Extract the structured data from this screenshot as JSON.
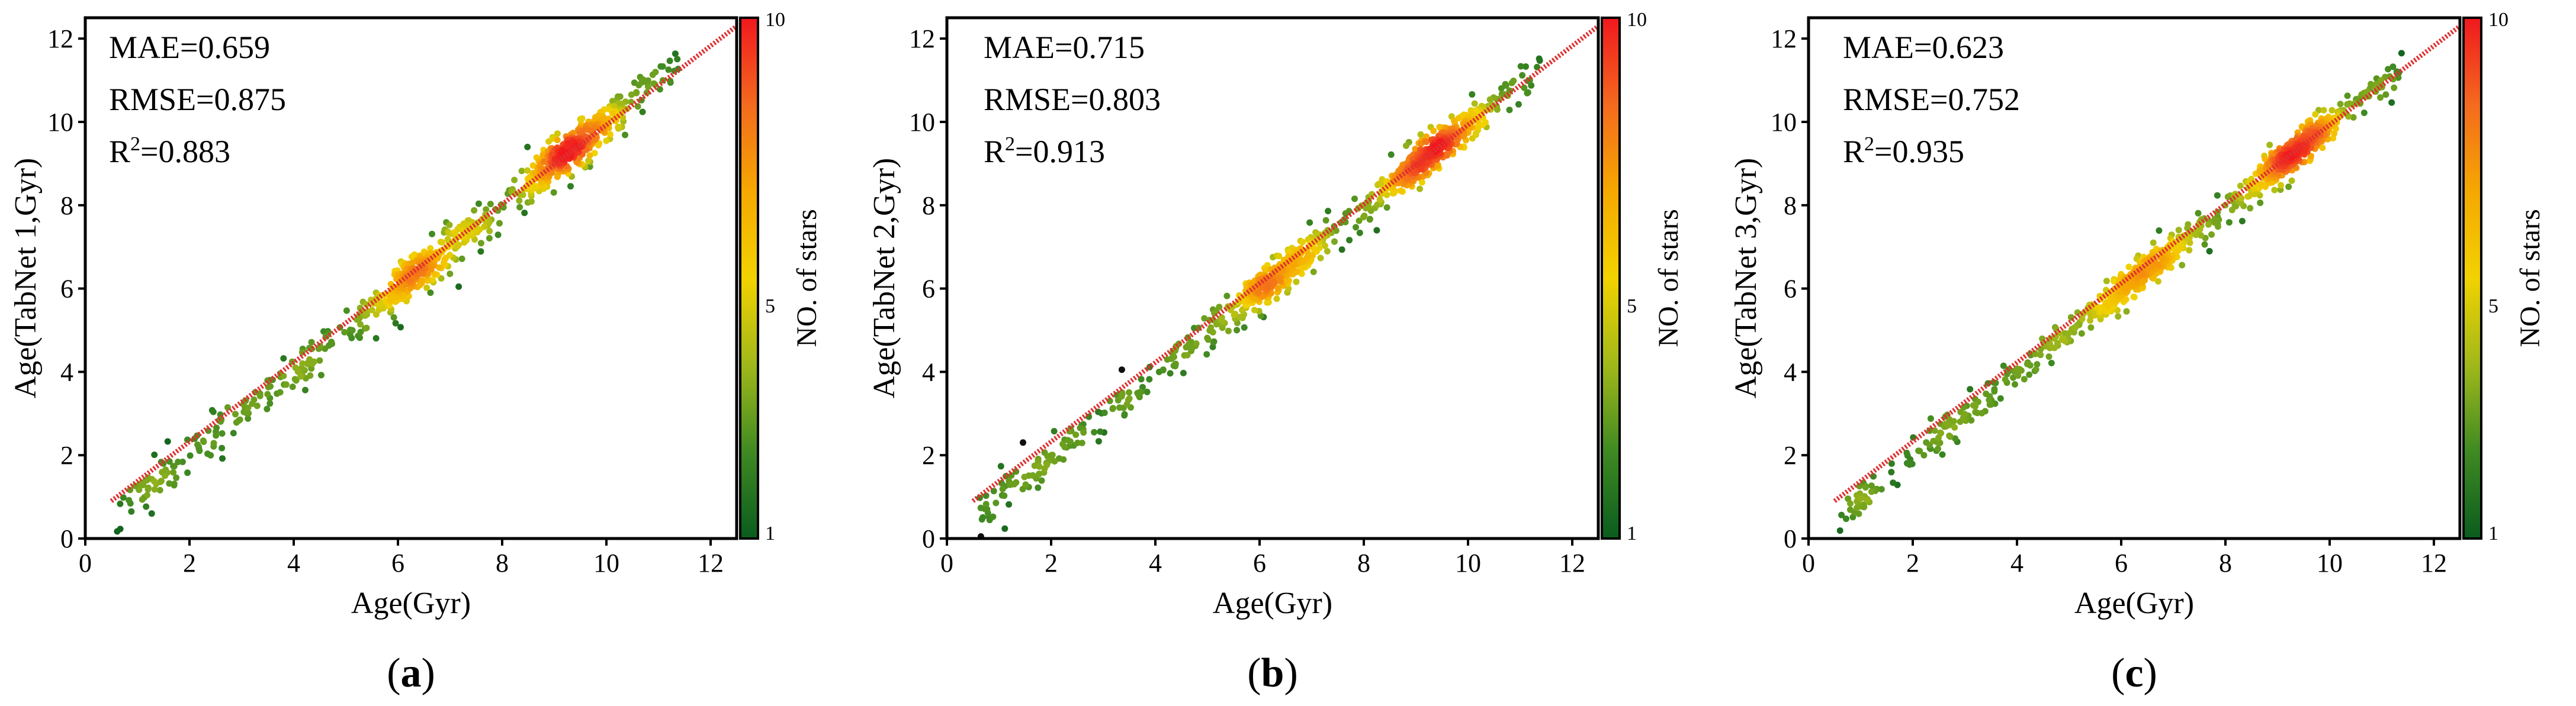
{
  "colorbar": {
    "label": "NO. of stars",
    "min": 1,
    "max": 10,
    "mid": 5,
    "ticks": [
      "1",
      "5",
      "10"
    ],
    "stops": [
      "#0a5c1e",
      "#3f8a22",
      "#a0b81a",
      "#f2d200",
      "#f5a800",
      "#f46a1e",
      "#f0181e"
    ]
  },
  "diagonal_color": "#e03030",
  "chart_data": [
    {
      "type": "scatter",
      "panel_label": "a",
      "xlabel": "Age(Gyr)",
      "ylabel": "Age(TabNet 1,Gyr)",
      "xlim": [
        0,
        12.5
      ],
      "ylim": [
        0,
        12.5
      ],
      "xticks": [
        0,
        2,
        4,
        6,
        8,
        10,
        12
      ],
      "yticks": [
        0,
        2,
        4,
        6,
        8,
        10,
        12
      ],
      "metrics": {
        "mae": "MAE=0.659",
        "rmse": "RMSE=0.875",
        "r2_prefix": "R",
        "r2_sup": "2",
        "r2_value": "=0.883"
      },
      "diagonal": [
        [
          0.5,
          0.9
        ],
        [
          12.5,
          12.3
        ]
      ],
      "n_points": 900,
      "noise_sd": 0.85,
      "seed": 11,
      "bias": 0.0
    },
    {
      "type": "scatter",
      "panel_label": "b",
      "xlabel": "Age(Gyr)",
      "ylabel": "Age(TabNet 2,Gyr)",
      "xlim": [
        0,
        12.5
      ],
      "ylim": [
        0,
        12.5
      ],
      "xticks": [
        0,
        2,
        4,
        6,
        8,
        10,
        12
      ],
      "yticks": [
        0,
        2,
        4,
        6,
        8,
        10,
        12
      ],
      "metrics": {
        "mae": "MAE=0.715",
        "rmse": "RMSE=0.803",
        "r2_prefix": "R",
        "r2_sup": "2",
        "r2_value": "=0.913"
      },
      "diagonal": [
        [
          0.5,
          0.9
        ],
        [
          12.5,
          12.3
        ]
      ],
      "n_points": 900,
      "noise_sd": 0.8,
      "seed": 23,
      "bias": -0.2
    },
    {
      "type": "scatter",
      "panel_label": "c",
      "xlabel": "Age(Gyr)",
      "ylabel": "Age(TabNet 3,Gyr)",
      "xlim": [
        0,
        12.5
      ],
      "ylim": [
        0,
        12.5
      ],
      "xticks": [
        0,
        2,
        4,
        6,
        8,
        10,
        12
      ],
      "yticks": [
        0,
        2,
        4,
        6,
        8,
        10,
        12
      ],
      "metrics": {
        "mae": "MAE=0.623",
        "rmse": "RMSE=0.752",
        "r2_prefix": "R",
        "r2_sup": "2",
        "r2_value": "=0.935"
      },
      "diagonal": [
        [
          0.5,
          0.9
        ],
        [
          12.5,
          12.3
        ]
      ],
      "n_points": 900,
      "noise_sd": 0.7,
      "seed": 37,
      "bias": -0.3
    }
  ]
}
